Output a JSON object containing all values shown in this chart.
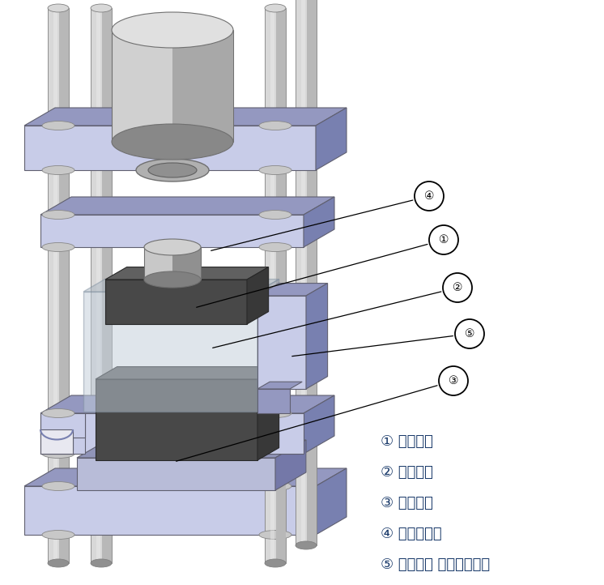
{
  "bg_color": "#ffffff",
  "plate_face": "#c8cce8",
  "plate_top": "#9498c0",
  "plate_side": "#7880b0",
  "plate_face2": "#b8bcd8",
  "rod_light": "#d8d8d8",
  "rod_mid": "#b8b8b8",
  "rod_dark": "#909090",
  "cyl_side_l": "#d0d0d0",
  "cyl_side_r": "#a8a8a8",
  "cyl_top": "#e0e0e0",
  "cyl_bot": "#888888",
  "plunger_l": "#c8c8c8",
  "plunger_r": "#909090",
  "mold_dark_face": "#484848",
  "mold_dark_top": "#606060",
  "mold_dark_side": "#383838",
  "glass_face": "#c0ccd8",
  "glass_top": "#a8b4c0",
  "glass_side": "#9098a8",
  "legend_items": [
    {
      "num": "①",
      "text": "상부금형"
    },
    {
      "num": "②",
      "text": "측면금형"
    },
    {
      "num": "③",
      "text": "하부금형"
    },
    {
      "num": "④",
      "text": "가압실린더"
    },
    {
      "num": "⑤",
      "text": "측면금형 이송플레이트"
    }
  ],
  "figsize": [
    7.46,
    7.22
  ],
  "dpi": 100
}
